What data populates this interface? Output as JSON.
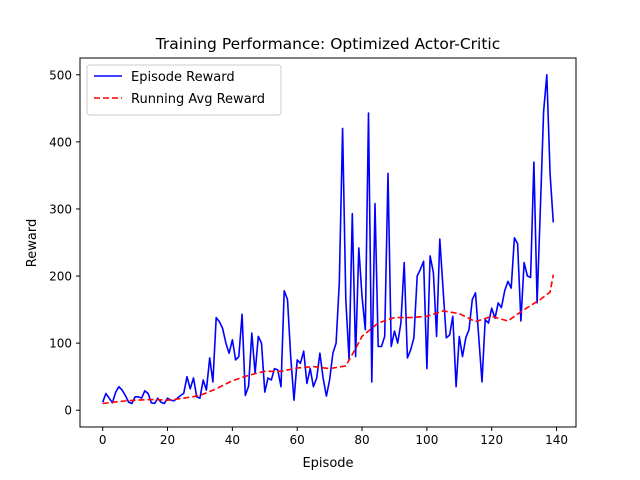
{
  "chart_data": {
    "type": "line",
    "title": "Training Performance: Optimized Actor-Critic",
    "xlabel": "Episode",
    "ylabel": "Reward",
    "xlim": [
      -7,
      146
    ],
    "ylim": [
      -25,
      525
    ],
    "xticks": [
      0,
      20,
      40,
      60,
      80,
      100,
      120,
      140
    ],
    "yticks": [
      0,
      100,
      200,
      300,
      400,
      500
    ],
    "grid": false,
    "legend_position": "top-left",
    "series": [
      {
        "name": "Episode Reward",
        "color": "#0000ff",
        "style": "solid",
        "x": [
          0,
          1,
          2,
          3,
          4,
          5,
          6,
          7,
          8,
          9,
          10,
          11,
          12,
          13,
          14,
          15,
          16,
          17,
          18,
          19,
          20,
          21,
          22,
          23,
          24,
          25,
          26,
          27,
          28,
          29,
          30,
          31,
          32,
          33,
          34,
          35,
          36,
          37,
          38,
          39,
          40,
          41,
          42,
          43,
          44,
          45,
          46,
          47,
          48,
          49,
          50,
          51,
          52,
          53,
          54,
          55,
          56,
          57,
          58,
          59,
          60,
          61,
          62,
          63,
          64,
          65,
          66,
          67,
          68,
          69,
          70,
          71,
          72,
          73,
          74,
          75,
          76,
          77,
          78,
          79,
          80,
          81,
          82,
          83,
          84,
          85,
          86,
          87,
          88,
          89,
          90,
          91,
          92,
          93,
          94,
          95,
          96,
          97,
          98,
          99,
          100,
          101,
          102,
          103,
          104,
          105,
          106,
          107,
          108,
          109,
          110,
          111,
          112,
          113,
          114,
          115,
          116,
          117,
          118,
          119,
          120,
          121,
          122,
          123,
          124,
          125,
          126,
          127,
          128,
          129,
          130,
          131,
          132,
          133,
          134,
          135,
          136,
          137,
          138,
          139
        ],
        "y": [
          12,
          25,
          18,
          11,
          27,
          35,
          30,
          22,
          12,
          10,
          20,
          20,
          18,
          29,
          25,
          11,
          10,
          18,
          12,
          10,
          18,
          15,
          14,
          18,
          22,
          25,
          50,
          32,
          48,
          20,
          18,
          45,
          30,
          78,
          42,
          138,
          132,
          122,
          100,
          85,
          105,
          75,
          80,
          143,
          22,
          36,
          115,
          55,
          110,
          100,
          27,
          48,
          45,
          62,
          60,
          35,
          178,
          165,
          80,
          15,
          75,
          70,
          88,
          40,
          62,
          35,
          48,
          85,
          48,
          21,
          45,
          85,
          100,
          190,
          420,
          165,
          75,
          293,
          80,
          242,
          170,
          120,
          443,
          42,
          308,
          95,
          95,
          110,
          353,
          95,
          118,
          100,
          130,
          220,
          78,
          90,
          108,
          200,
          210,
          222,
          62,
          230,
          205,
          110,
          255,
          180,
          108,
          112,
          140,
          35,
          110,
          80,
          108,
          120,
          165,
          175,
          110,
          42,
          135,
          130,
          152,
          137,
          160,
          153,
          178,
          192,
          182,
          257,
          248,
          133,
          220,
          200,
          198,
          370,
          160,
          298,
          445,
          500,
          352,
          280
        ],
        "visible_points": 140
      },
      {
        "name": "Running Avg Reward",
        "color": "#ff0000",
        "style": "dashed",
        "x": [
          0,
          5,
          10,
          15,
          20,
          25,
          30,
          35,
          40,
          45,
          50,
          55,
          60,
          65,
          70,
          75,
          78,
          80,
          85,
          90,
          95,
          100,
          105,
          110,
          115,
          120,
          125,
          130,
          135,
          138,
          139
        ],
        "y": [
          10,
          13,
          15,
          16,
          15,
          18,
          22,
          32,
          44,
          52,
          58,
          58,
          63,
          65,
          62,
          66,
          92,
          110,
          130,
          138,
          138,
          140,
          148,
          144,
          132,
          140,
          133,
          150,
          165,
          176,
          202
        ]
      }
    ]
  }
}
